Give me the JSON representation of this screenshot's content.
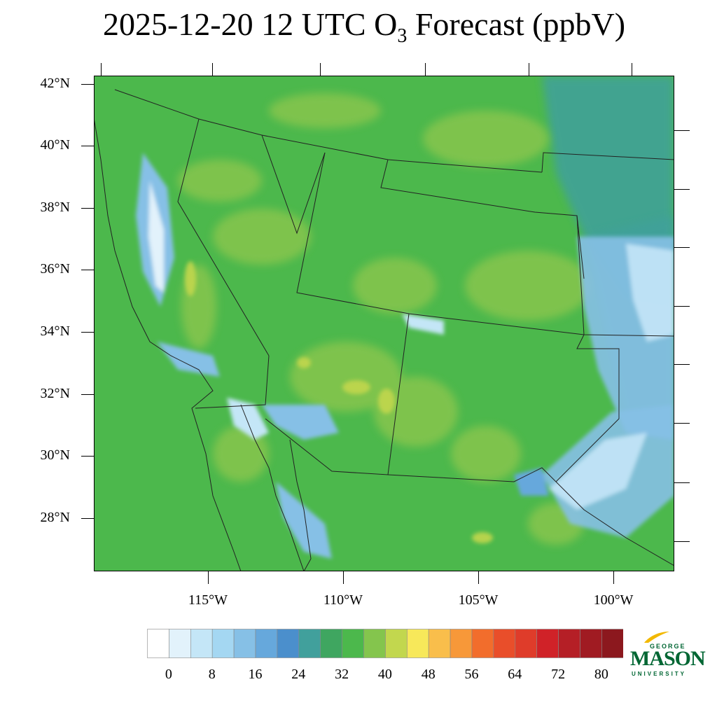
{
  "title": {
    "date_text": "2025-12-20 12 UTC O",
    "subscript": "3",
    "suffix": " Forecast (ppbV)"
  },
  "map": {
    "lat_labels": [
      "42°N",
      "40°N",
      "38°N",
      "36°N",
      "34°N",
      "32°N",
      "30°N",
      "28°N"
    ],
    "lon_labels": [
      "115°W",
      "110°W",
      "105°W",
      "100°W"
    ],
    "ocean_color": "#4bb84b",
    "land_base_color": "#4cb84c"
  },
  "colorbar": {
    "colors": [
      "#ffffff",
      "#e2f2fb",
      "#c4e6f7",
      "#a4d7f2",
      "#86c0e6",
      "#66a8dc",
      "#4b8fcc",
      "#41a09c",
      "#3fa660",
      "#4cb84c",
      "#84c54d",
      "#c2d74e",
      "#f7e85a",
      "#f9be4b",
      "#f79839",
      "#f26d2c",
      "#e94e2a",
      "#df3c2a",
      "#d02228",
      "#b51f26",
      "#a01b22",
      "#8c181e"
    ],
    "tick_labels": [
      "0",
      "8",
      "16",
      "24",
      "32",
      "40",
      "48",
      "56",
      "64",
      "72",
      "80"
    ]
  },
  "logo": {
    "line1": "GEORGE",
    "line2": "MASON",
    "line3": "UNIVERSITY",
    "color": "#006633",
    "accent": "#f2b800"
  }
}
